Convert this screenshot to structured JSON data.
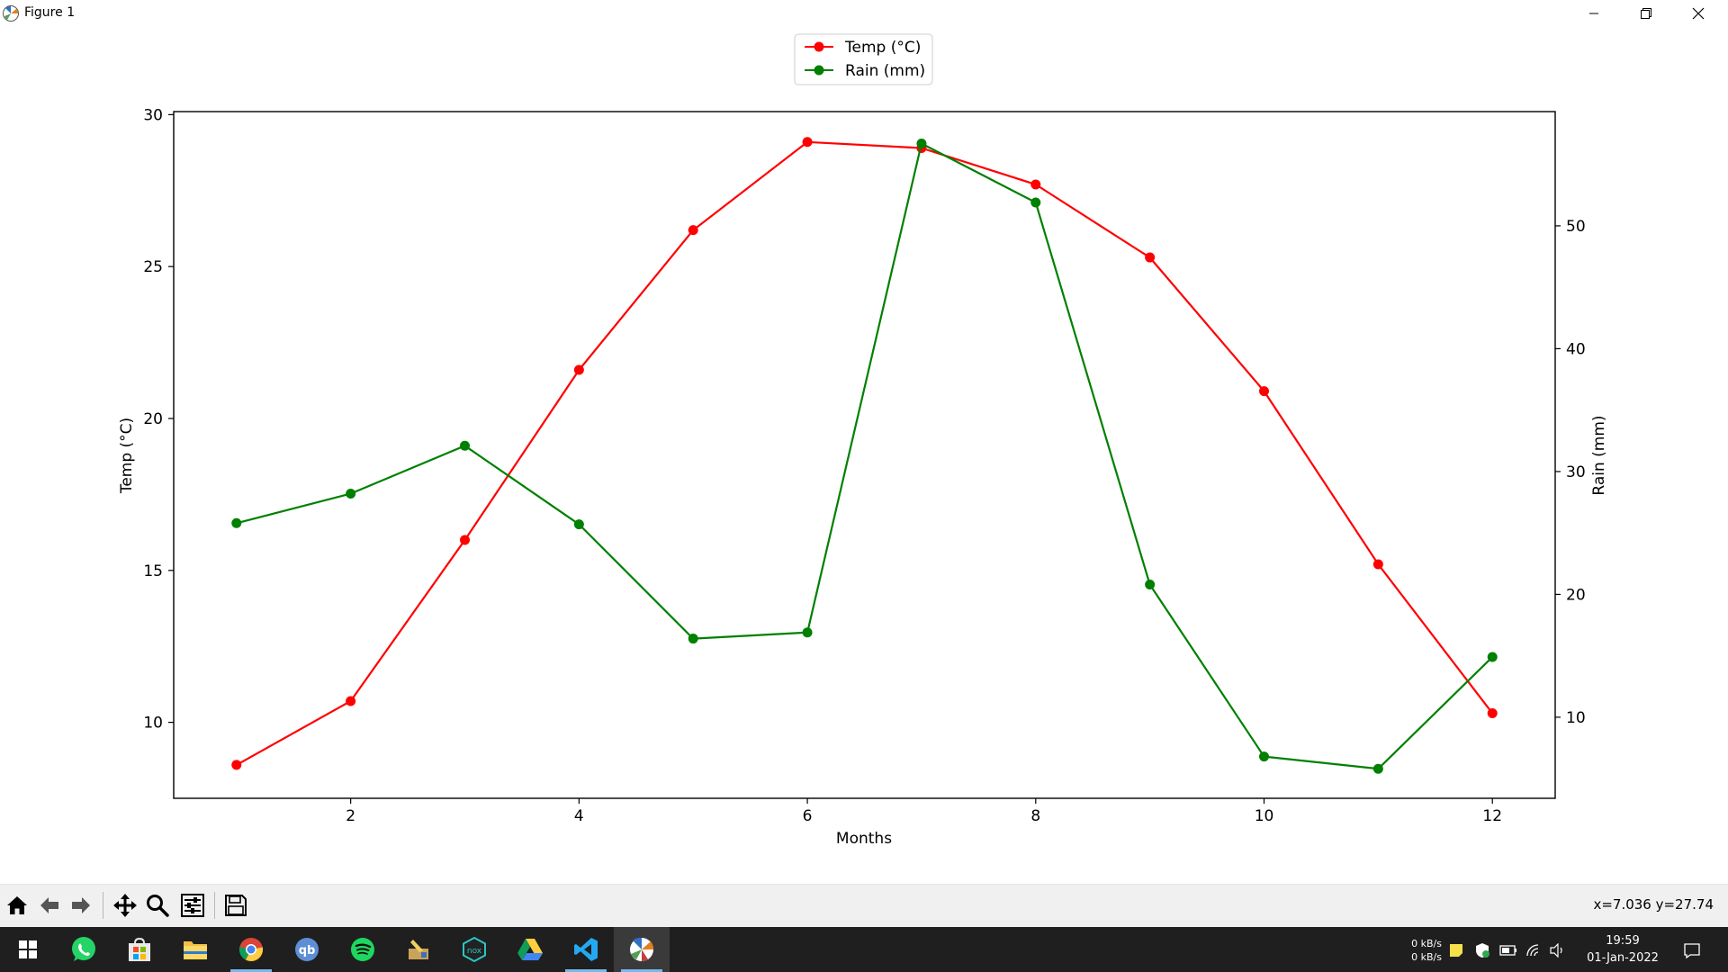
{
  "window": {
    "title": "Figure 1"
  },
  "toolbar": {
    "coords": "x=7.036 y=27.74",
    "buttons": [
      {
        "name": "home-button",
        "icon": "home-icon"
      },
      {
        "name": "back-button",
        "icon": "arrow-left-icon"
      },
      {
        "name": "forward-button",
        "icon": "arrow-right-icon"
      },
      {
        "name": "pan-button",
        "icon": "move-icon"
      },
      {
        "name": "zoom-button",
        "icon": "magnifier-icon"
      },
      {
        "name": "configure-subplots-button",
        "icon": "sliders-icon"
      },
      {
        "name": "save-button",
        "icon": "floppy-disk-icon"
      }
    ]
  },
  "taskbar": {
    "net_up": "0 kB/s",
    "net_down": "0 kB/s",
    "time": "19:59",
    "date": "01-Jan-2022"
  },
  "chart_data": {
    "type": "line",
    "xlabel": "Months",
    "ylabel_left": "Temp (°C)",
    "ylabel_right": "Rain (mm)",
    "xlim": [
      0.45,
      12.55
    ],
    "xticks": [
      2,
      4,
      6,
      8,
      10,
      12
    ],
    "ylim_left": [
      7.5,
      30.1
    ],
    "yticks_left": [
      10,
      15,
      20,
      25,
      30
    ],
    "ylim_right": [
      3.4,
      59.3
    ],
    "yticks_right": [
      10,
      20,
      30,
      40,
      50
    ],
    "legend_position": "upper-center-above",
    "grid": false,
    "x": [
      1,
      2,
      3,
      4,
      5,
      6,
      7,
      8,
      9,
      10,
      11,
      12
    ],
    "series": [
      {
        "name": "Temp (°C)",
        "axis": "left",
        "color": "#ff0000",
        "values": [
          8.6,
          10.7,
          16.0,
          21.6,
          26.2,
          29.1,
          28.9,
          27.7,
          25.3,
          20.9,
          15.2,
          10.3
        ]
      },
      {
        "name": "Rain (mm)",
        "axis": "right",
        "color": "#008000",
        "values": [
          25.8,
          28.2,
          32.1,
          25.7,
          16.4,
          16.9,
          56.7,
          51.9,
          20.8,
          6.8,
          5.8,
          14.9
        ]
      }
    ]
  }
}
